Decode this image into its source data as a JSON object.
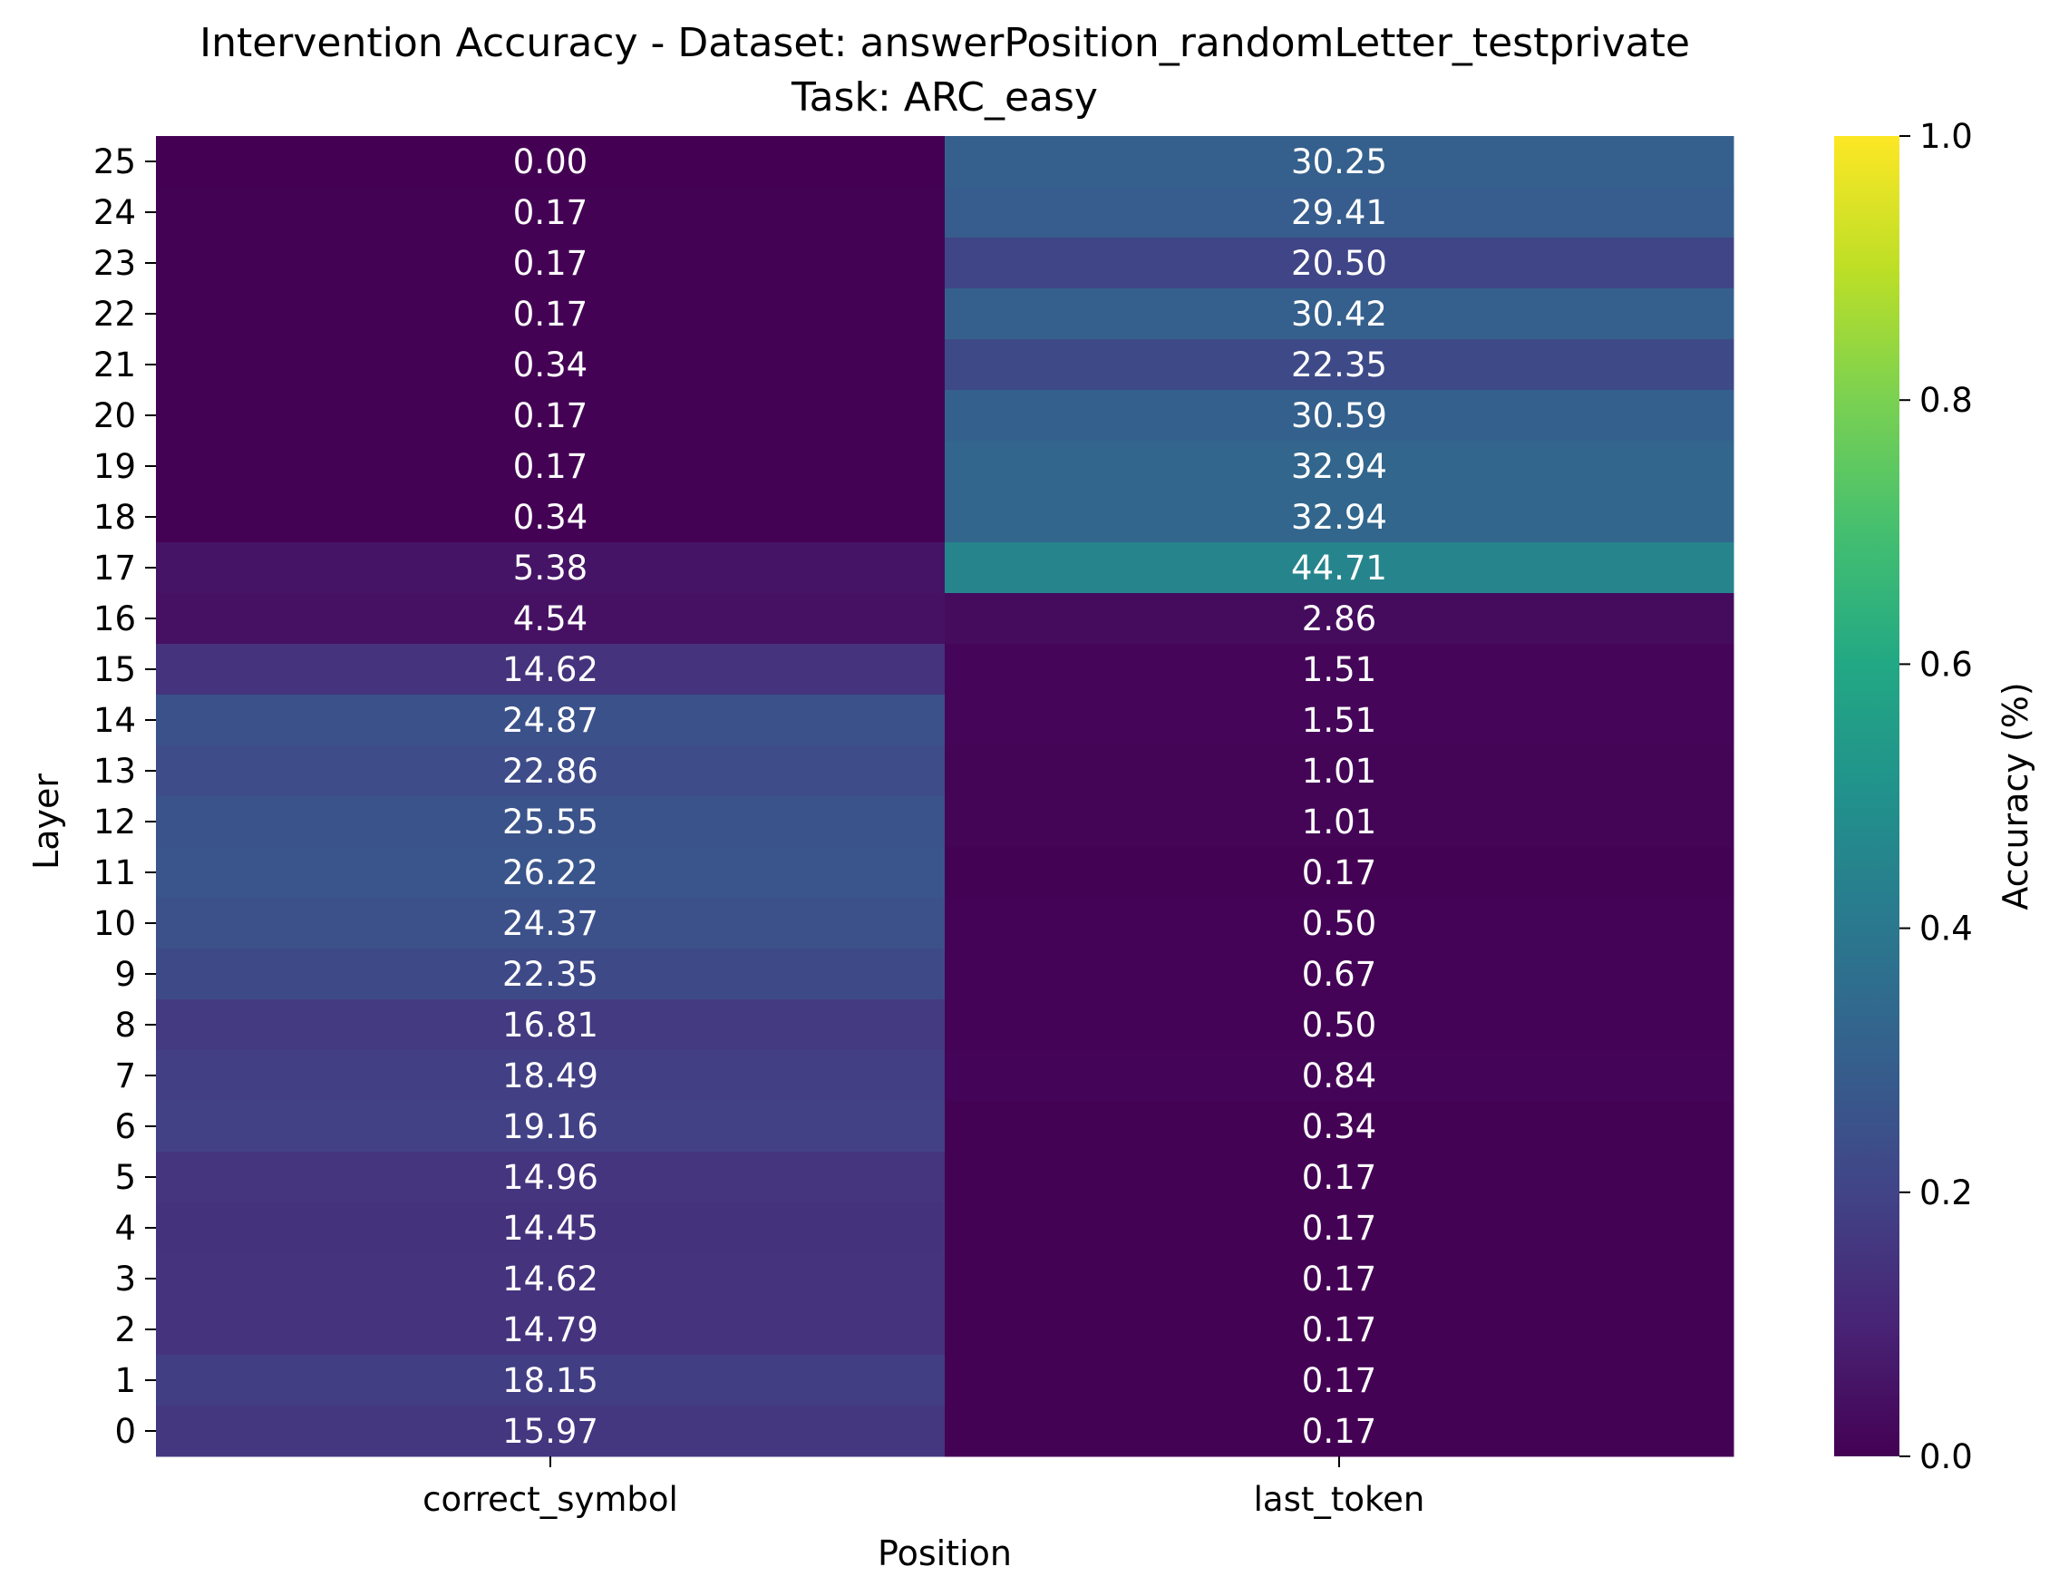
{
  "chart_data": {
    "type": "heatmap",
    "title": "Intervention Accuracy - Dataset: answerPosition_randomLetter_testprivate",
    "subtitle": "Task: ARC_easy",
    "xlabel": "Position",
    "ylabel": "Layer",
    "colorbar_label": "Accuracy (%)",
    "colormap": "viridis",
    "color_range": [
      0,
      1
    ],
    "colorbar_ticks": [
      "0.0",
      "0.2",
      "0.4",
      "0.6",
      "0.8",
      "1.0"
    ],
    "columns": [
      "correct_symbol",
      "last_token"
    ],
    "rows": [
      25,
      24,
      23,
      22,
      21,
      20,
      19,
      18,
      17,
      16,
      15,
      14,
      13,
      12,
      11,
      10,
      9,
      8,
      7,
      6,
      5,
      4,
      3,
      2,
      1,
      0
    ],
    "values": [
      [
        0.0,
        30.25
      ],
      [
        0.17,
        29.41
      ],
      [
        0.17,
        20.5
      ],
      [
        0.17,
        30.42
      ],
      [
        0.34,
        22.35
      ],
      [
        0.17,
        30.59
      ],
      [
        0.17,
        32.94
      ],
      [
        0.34,
        32.94
      ],
      [
        5.38,
        44.71
      ],
      [
        4.54,
        2.86
      ],
      [
        14.62,
        1.51
      ],
      [
        24.87,
        1.51
      ],
      [
        22.86,
        1.01
      ],
      [
        25.55,
        1.01
      ],
      [
        26.22,
        0.17
      ],
      [
        24.37,
        0.5
      ],
      [
        22.35,
        0.67
      ],
      [
        16.81,
        0.5
      ],
      [
        18.49,
        0.84
      ],
      [
        19.16,
        0.34
      ],
      [
        14.96,
        0.17
      ],
      [
        14.45,
        0.17
      ],
      [
        14.62,
        0.17
      ],
      [
        14.79,
        0.17
      ],
      [
        18.15,
        0.17
      ],
      [
        15.97,
        0.17
      ]
    ]
  }
}
